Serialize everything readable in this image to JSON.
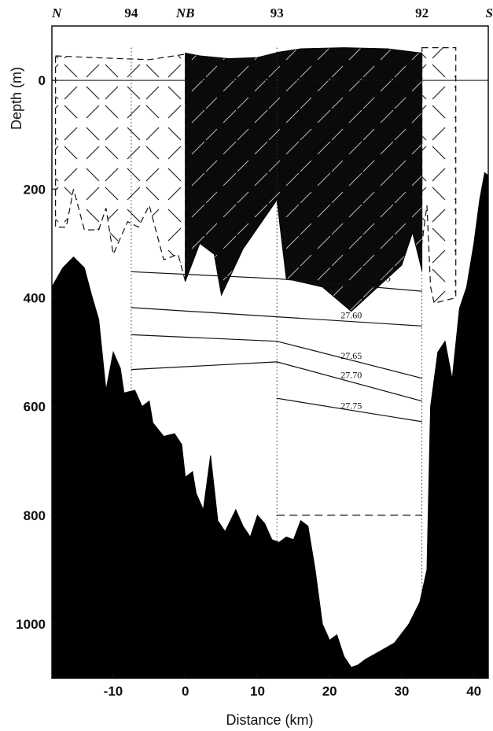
{
  "chart_data": {
    "type": "section",
    "xlabel": "Distance (km)",
    "ylabel": "Depth (m)",
    "xlim": [
      -18.5,
      42
    ],
    "ylim": [
      -100,
      1100
    ],
    "y_inverted": true,
    "x_ticks": [
      -10,
      0,
      10,
      20,
      30,
      40
    ],
    "y_ticks": [
      0,
      200,
      400,
      600,
      800,
      1000
    ],
    "top_labels": [
      {
        "text": "N",
        "x": -18,
        "style": "italic"
      },
      {
        "text": "94",
        "x": -7.5,
        "style": "bold"
      },
      {
        "text": "NB",
        "x": 0,
        "style": "italic"
      },
      {
        "text": "93",
        "x": 12.7,
        "style": "bold"
      },
      {
        "text": "92",
        "x": 32.8,
        "style": "bold"
      },
      {
        "text": "S",
        "x": 42,
        "style": "italic"
      }
    ],
    "stations": [
      {
        "name": "94",
        "x": -7.5
      },
      {
        "name": "93",
        "x": 12.7
      },
      {
        "name": "92",
        "x": 32.8
      }
    ],
    "isopycnals": [
      {
        "label": "27.55",
        "points": [
          [
            -7.5,
            352
          ],
          [
            12.7,
            365
          ],
          [
            32.8,
            388
          ]
        ],
        "label_at": [
          27,
          370
        ]
      },
      {
        "label": "27.60",
        "points": [
          [
            -7.5,
            418
          ],
          [
            12.7,
            435
          ],
          [
            32.8,
            452
          ]
        ],
        "label_at": [
          23,
          438
        ]
      },
      {
        "label": "27.65",
        "points": [
          [
            -7.5,
            468
          ],
          [
            12.7,
            480
          ],
          [
            32.8,
            548
          ]
        ],
        "label_at": [
          23,
          512
        ]
      },
      {
        "label": "27.70",
        "points": [
          [
            -7.5,
            532
          ],
          [
            12.7,
            518
          ],
          [
            32.8,
            590
          ]
        ],
        "label_at": [
          23,
          548
        ]
      },
      {
        "label": "27.75",
        "points": [
          [
            12.7,
            585
          ],
          [
            32.8,
            628
          ]
        ],
        "label_at": [
          23,
          604
        ]
      }
    ],
    "dashed_line": {
      "depth": 800,
      "x_range": [
        12.7,
        32.8
      ]
    },
    "surface_layer_top_depth": -55,
    "dark_water_mass_boundary": [
      [
        0,
        -50
      ],
      [
        2,
        -45
      ],
      [
        6,
        -40
      ],
      [
        10,
        -42
      ],
      [
        13,
        -52
      ],
      [
        16,
        -58
      ],
      [
        22,
        -60
      ],
      [
        28,
        -58
      ],
      [
        32.8,
        -50
      ],
      [
        32.8,
        350
      ],
      [
        31.5,
        280
      ],
      [
        30,
        340
      ],
      [
        23,
        425
      ],
      [
        19,
        380
      ],
      [
        14,
        365
      ],
      [
        12.7,
        220
      ],
      [
        8,
        310
      ],
      [
        5,
        395
      ],
      [
        4,
        320
      ],
      [
        2,
        300
      ],
      [
        0,
        370
      ]
    ],
    "hatched_region_north": {
      "x_range": [
        -18,
        0
      ],
      "top_depth": -45,
      "bottom_depth_approx": 300
    },
    "hatched_region_south": {
      "x_range": [
        32.8,
        37.5
      ],
      "top_depth": -60,
      "bottom_depth_approx": 410
    },
    "bathymetry": [
      [
        -18.5,
        380
      ],
      [
        -17,
        345
      ],
      [
        -15.5,
        325
      ],
      [
        -14,
        345
      ],
      [
        -13,
        395
      ],
      [
        -12,
        440
      ],
      [
        -11,
        570
      ],
      [
        -10,
        500
      ],
      [
        -9,
        530
      ],
      [
        -8.5,
        575
      ],
      [
        -7,
        570
      ],
      [
        -6,
        600
      ],
      [
        -5,
        590
      ],
      [
        -4.5,
        630
      ],
      [
        -3,
        655
      ],
      [
        -1.5,
        650
      ],
      [
        -0.5,
        670
      ],
      [
        0,
        730
      ],
      [
        1,
        720
      ],
      [
        1.5,
        760
      ],
      [
        2.5,
        790
      ],
      [
        3.5,
        690
      ],
      [
        4.5,
        810
      ],
      [
        5.5,
        830
      ],
      [
        7,
        790
      ],
      [
        8,
        820
      ],
      [
        9,
        840
      ],
      [
        10,
        800
      ],
      [
        11,
        815
      ],
      [
        12,
        845
      ],
      [
        13,
        850
      ],
      [
        14,
        840
      ],
      [
        15,
        845
      ],
      [
        16,
        810
      ],
      [
        17,
        820
      ],
      [
        18,
        900
      ],
      [
        19,
        1000
      ],
      [
        20,
        1030
      ],
      [
        21,
        1020
      ],
      [
        22,
        1060
      ],
      [
        23,
        1080
      ],
      [
        24,
        1075
      ],
      [
        25,
        1065
      ],
      [
        27,
        1050
      ],
      [
        29,
        1035
      ],
      [
        31,
        1000
      ],
      [
        32.5,
        960
      ],
      [
        33.5,
        900
      ],
      [
        34,
        600
      ],
      [
        35,
        500
      ],
      [
        36,
        480
      ],
      [
        37,
        550
      ],
      [
        38,
        420
      ],
      [
        39,
        380
      ],
      [
        40,
        300
      ],
      [
        40.8,
        220
      ],
      [
        41.5,
        170
      ],
      [
        42,
        175
      ]
    ]
  }
}
